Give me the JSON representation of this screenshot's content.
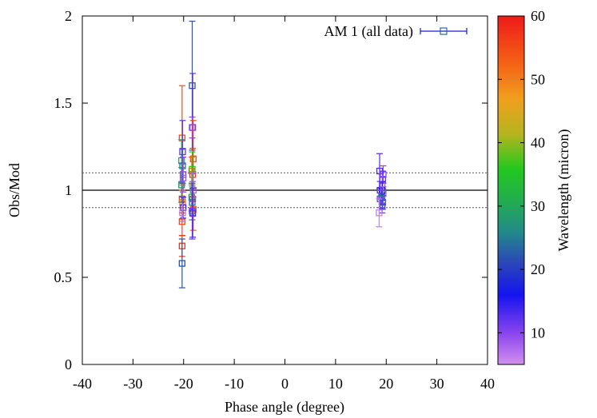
{
  "chart_data": {
    "type": "scatter",
    "xlabel": "Phase angle (degree)",
    "ylabel": "Obs/Mod",
    "xlim": [
      -40,
      40
    ],
    "ylim": [
      0,
      2
    ],
    "xticks": [
      "-40",
      "-30",
      "-20",
      "-10",
      "0",
      "10",
      "20",
      "30",
      "40"
    ],
    "yticks": [
      "0",
      "0.5",
      "1",
      "1.5",
      "2"
    ],
    "legend": {
      "label": "AM 1 (all data)",
      "placement": "top-right"
    },
    "reference_lines": [
      {
        "y": 1.0,
        "style": "solid"
      },
      {
        "y": 1.1,
        "style": "dotted"
      },
      {
        "y": 0.9,
        "style": "dotted"
      }
    ],
    "colorbar": {
      "label": "Wavelength (micron)",
      "range": [
        5,
        60
      ],
      "ticks": [
        "10",
        "20",
        "30",
        "40",
        "50",
        "60"
      ]
    },
    "series": [
      {
        "points": [
          {
            "x": -20.3,
            "y": 1.3,
            "err": 0.3,
            "wl": 55
          },
          {
            "x": -20.3,
            "y": 0.95,
            "err": 0.08,
            "wl": 57
          },
          {
            "x": -20.3,
            "y": 0.82,
            "err": 0.08,
            "wl": 55
          },
          {
            "x": -20.3,
            "y": 0.68,
            "err": 0.06,
            "wl": 57
          },
          {
            "x": -20.2,
            "y": 0.93,
            "err": 0.1,
            "wl": 50
          },
          {
            "x": -20.4,
            "y": 1.17,
            "err": 0.12,
            "wl": 30
          },
          {
            "x": -20.4,
            "y": 1.03,
            "err": 0.1,
            "wl": 28
          },
          {
            "x": -20.3,
            "y": 0.58,
            "err": 0.14,
            "wl": 22
          },
          {
            "x": -20.2,
            "y": 1.14,
            "err": 0.1,
            "wl": 25
          },
          {
            "x": -20.2,
            "y": 1.22,
            "err": 0.18,
            "wl": 12
          },
          {
            "x": -20.1,
            "y": 1.09,
            "err": 0.1,
            "wl": 10
          },
          {
            "x": -20.1,
            "y": 1.07,
            "err": 0.08,
            "wl": 9
          },
          {
            "x": -20.1,
            "y": 0.9,
            "err": 0.06,
            "wl": 14
          },
          {
            "x": -20.2,
            "y": 0.87,
            "err": 0.05,
            "wl": 7
          },
          {
            "x": -18.3,
            "y": 1.6,
            "err": 0.37,
            "wl": 22
          },
          {
            "x": -18.2,
            "y": 1.36,
            "err": 0.31,
            "wl": 12
          },
          {
            "x": -18.3,
            "y": 1.36,
            "err": 0.06,
            "wl": 10
          },
          {
            "x": -18.1,
            "y": 1.18,
            "err": 0.22,
            "wl": 55
          },
          {
            "x": -18.2,
            "y": 1.09,
            "err": 0.15,
            "wl": 57
          },
          {
            "x": -18.4,
            "y": 1.11,
            "err": 0.08,
            "wl": 52
          },
          {
            "x": -18.3,
            "y": 1.12,
            "err": 0.1,
            "wl": 36
          },
          {
            "x": -18.1,
            "y": 1.0,
            "err": 0.1,
            "wl": 8
          },
          {
            "x": -18.4,
            "y": 0.96,
            "err": 0.08,
            "wl": 32
          },
          {
            "x": -18.2,
            "y": 0.95,
            "err": 0.1,
            "wl": 9
          },
          {
            "x": -18.3,
            "y": 0.93,
            "err": 0.1,
            "wl": 24
          },
          {
            "x": -18.1,
            "y": 0.89,
            "err": 0.12,
            "wl": 53
          },
          {
            "x": -18.2,
            "y": 0.87,
            "err": 0.14,
            "wl": 14
          },
          {
            "x": -18.3,
            "y": 0.88,
            "err": 0.16,
            "wl": 12
          },
          {
            "x": 18.7,
            "y": 1.11,
            "err": 0.1,
            "wl": 13
          },
          {
            "x": 19.4,
            "y": 1.09,
            "err": 0.05,
            "wl": 10
          },
          {
            "x": 19.3,
            "y": 1.06,
            "err": 0.05,
            "wl": 12
          },
          {
            "x": 19.2,
            "y": 1.03,
            "err": 0.05,
            "wl": 9
          },
          {
            "x": 19.2,
            "y": 1.0,
            "err": 0.05,
            "wl": 16
          },
          {
            "x": 18.8,
            "y": 1.0,
            "err": 0.05,
            "wl": 13
          },
          {
            "x": 19.4,
            "y": 0.98,
            "err": 0.04,
            "wl": 8
          },
          {
            "x": 19.1,
            "y": 0.96,
            "err": 0.04,
            "wl": 20
          },
          {
            "x": 18.8,
            "y": 0.95,
            "err": 0.05,
            "wl": 11
          },
          {
            "x": 19.3,
            "y": 0.93,
            "err": 0.04,
            "wl": 24
          },
          {
            "x": 19.2,
            "y": 0.91,
            "err": 0.04,
            "wl": 12
          },
          {
            "x": 18.6,
            "y": 0.87,
            "err": 0.08,
            "wl": 6
          }
        ]
      }
    ]
  }
}
